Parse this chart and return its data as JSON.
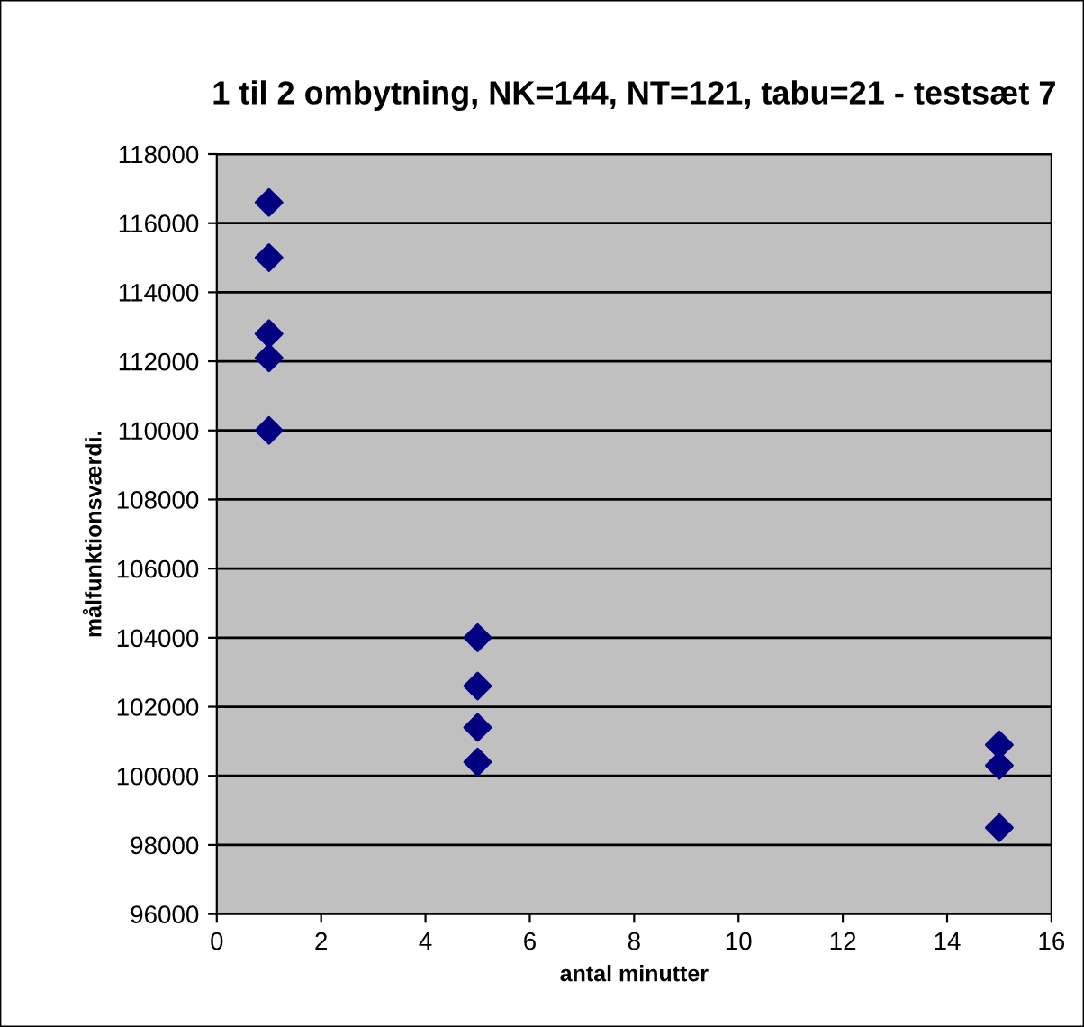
{
  "chart_data": {
    "type": "scatter",
    "title": "1 til 2 ombytning, NK=144, NT=121, tabu=21 - testsæt 7",
    "xlabel": "antal minutter",
    "ylabel": "målfunktionsværdi.",
    "x": [
      1,
      1,
      1,
      1,
      1,
      5,
      5,
      5,
      5,
      15,
      15,
      15
    ],
    "series": [
      {
        "color": "#000080",
        "values": [
          116600,
          115000,
          112800,
          112100,
          110000,
          104000,
          102600,
          101400,
          100400,
          100900,
          100300,
          98500
        ]
      }
    ],
    "xlim": [
      0,
      16
    ],
    "xticks": [
      0,
      2,
      4,
      6,
      8,
      10,
      12,
      14,
      16
    ],
    "ylim": [
      96000,
      118000
    ],
    "yticks": [
      96000,
      98000,
      100000,
      102000,
      104000,
      106000,
      108000,
      110000,
      112000,
      114000,
      116000,
      118000
    ],
    "grid": "y",
    "marker": "diamond",
    "legend": false
  }
}
